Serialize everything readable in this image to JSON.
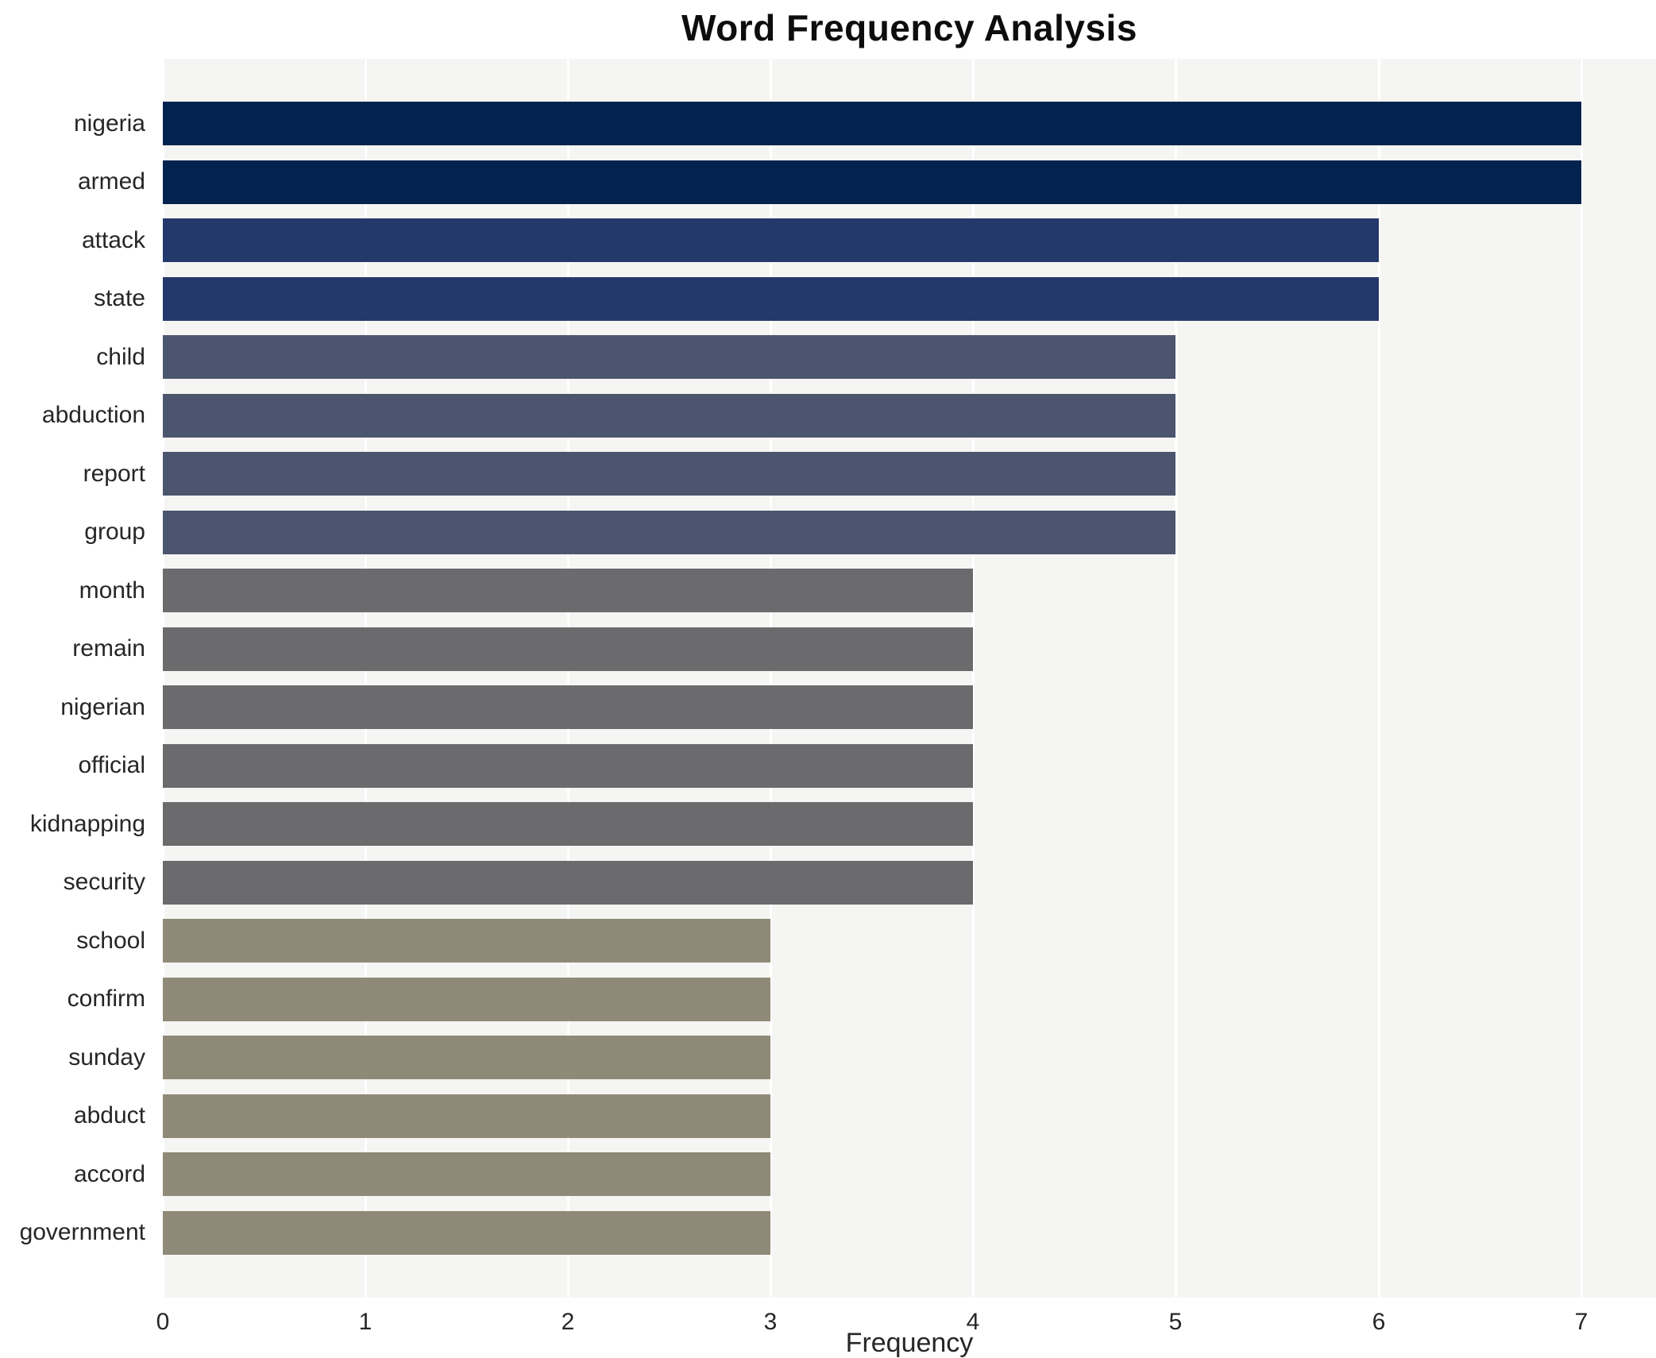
{
  "chart_data": {
    "type": "bar",
    "orientation": "horizontal",
    "title": "Word Frequency Analysis",
    "xlabel": "Frequency",
    "ylabel": "",
    "categories": [
      "nigeria",
      "armed",
      "attack",
      "state",
      "child",
      "abduction",
      "report",
      "group",
      "month",
      "remain",
      "nigerian",
      "official",
      "kidnapping",
      "security",
      "school",
      "confirm",
      "sunday",
      "abduct",
      "accord",
      "government"
    ],
    "values": [
      7,
      7,
      6,
      6,
      5,
      5,
      5,
      5,
      4,
      4,
      4,
      4,
      4,
      4,
      3,
      3,
      3,
      3,
      3,
      3
    ],
    "xlim": [
      0,
      7.37
    ],
    "xticks": [
      0,
      1,
      2,
      3,
      4,
      5,
      6,
      7
    ],
    "grid": "vertical white gridlines at integer ticks on light-gray plot background",
    "legend": "none",
    "bar_colors_by_value": {
      "7": "#01234e",
      "6": "#24396b",
      "5": "#4c556e",
      "4": "#6b6b6e",
      "3": "#8f8977"
    },
    "plot_background": "#f5f5f3",
    "page_background": "#ffffff",
    "gridline_color": "#ffffff",
    "text_color": "#262626"
  }
}
